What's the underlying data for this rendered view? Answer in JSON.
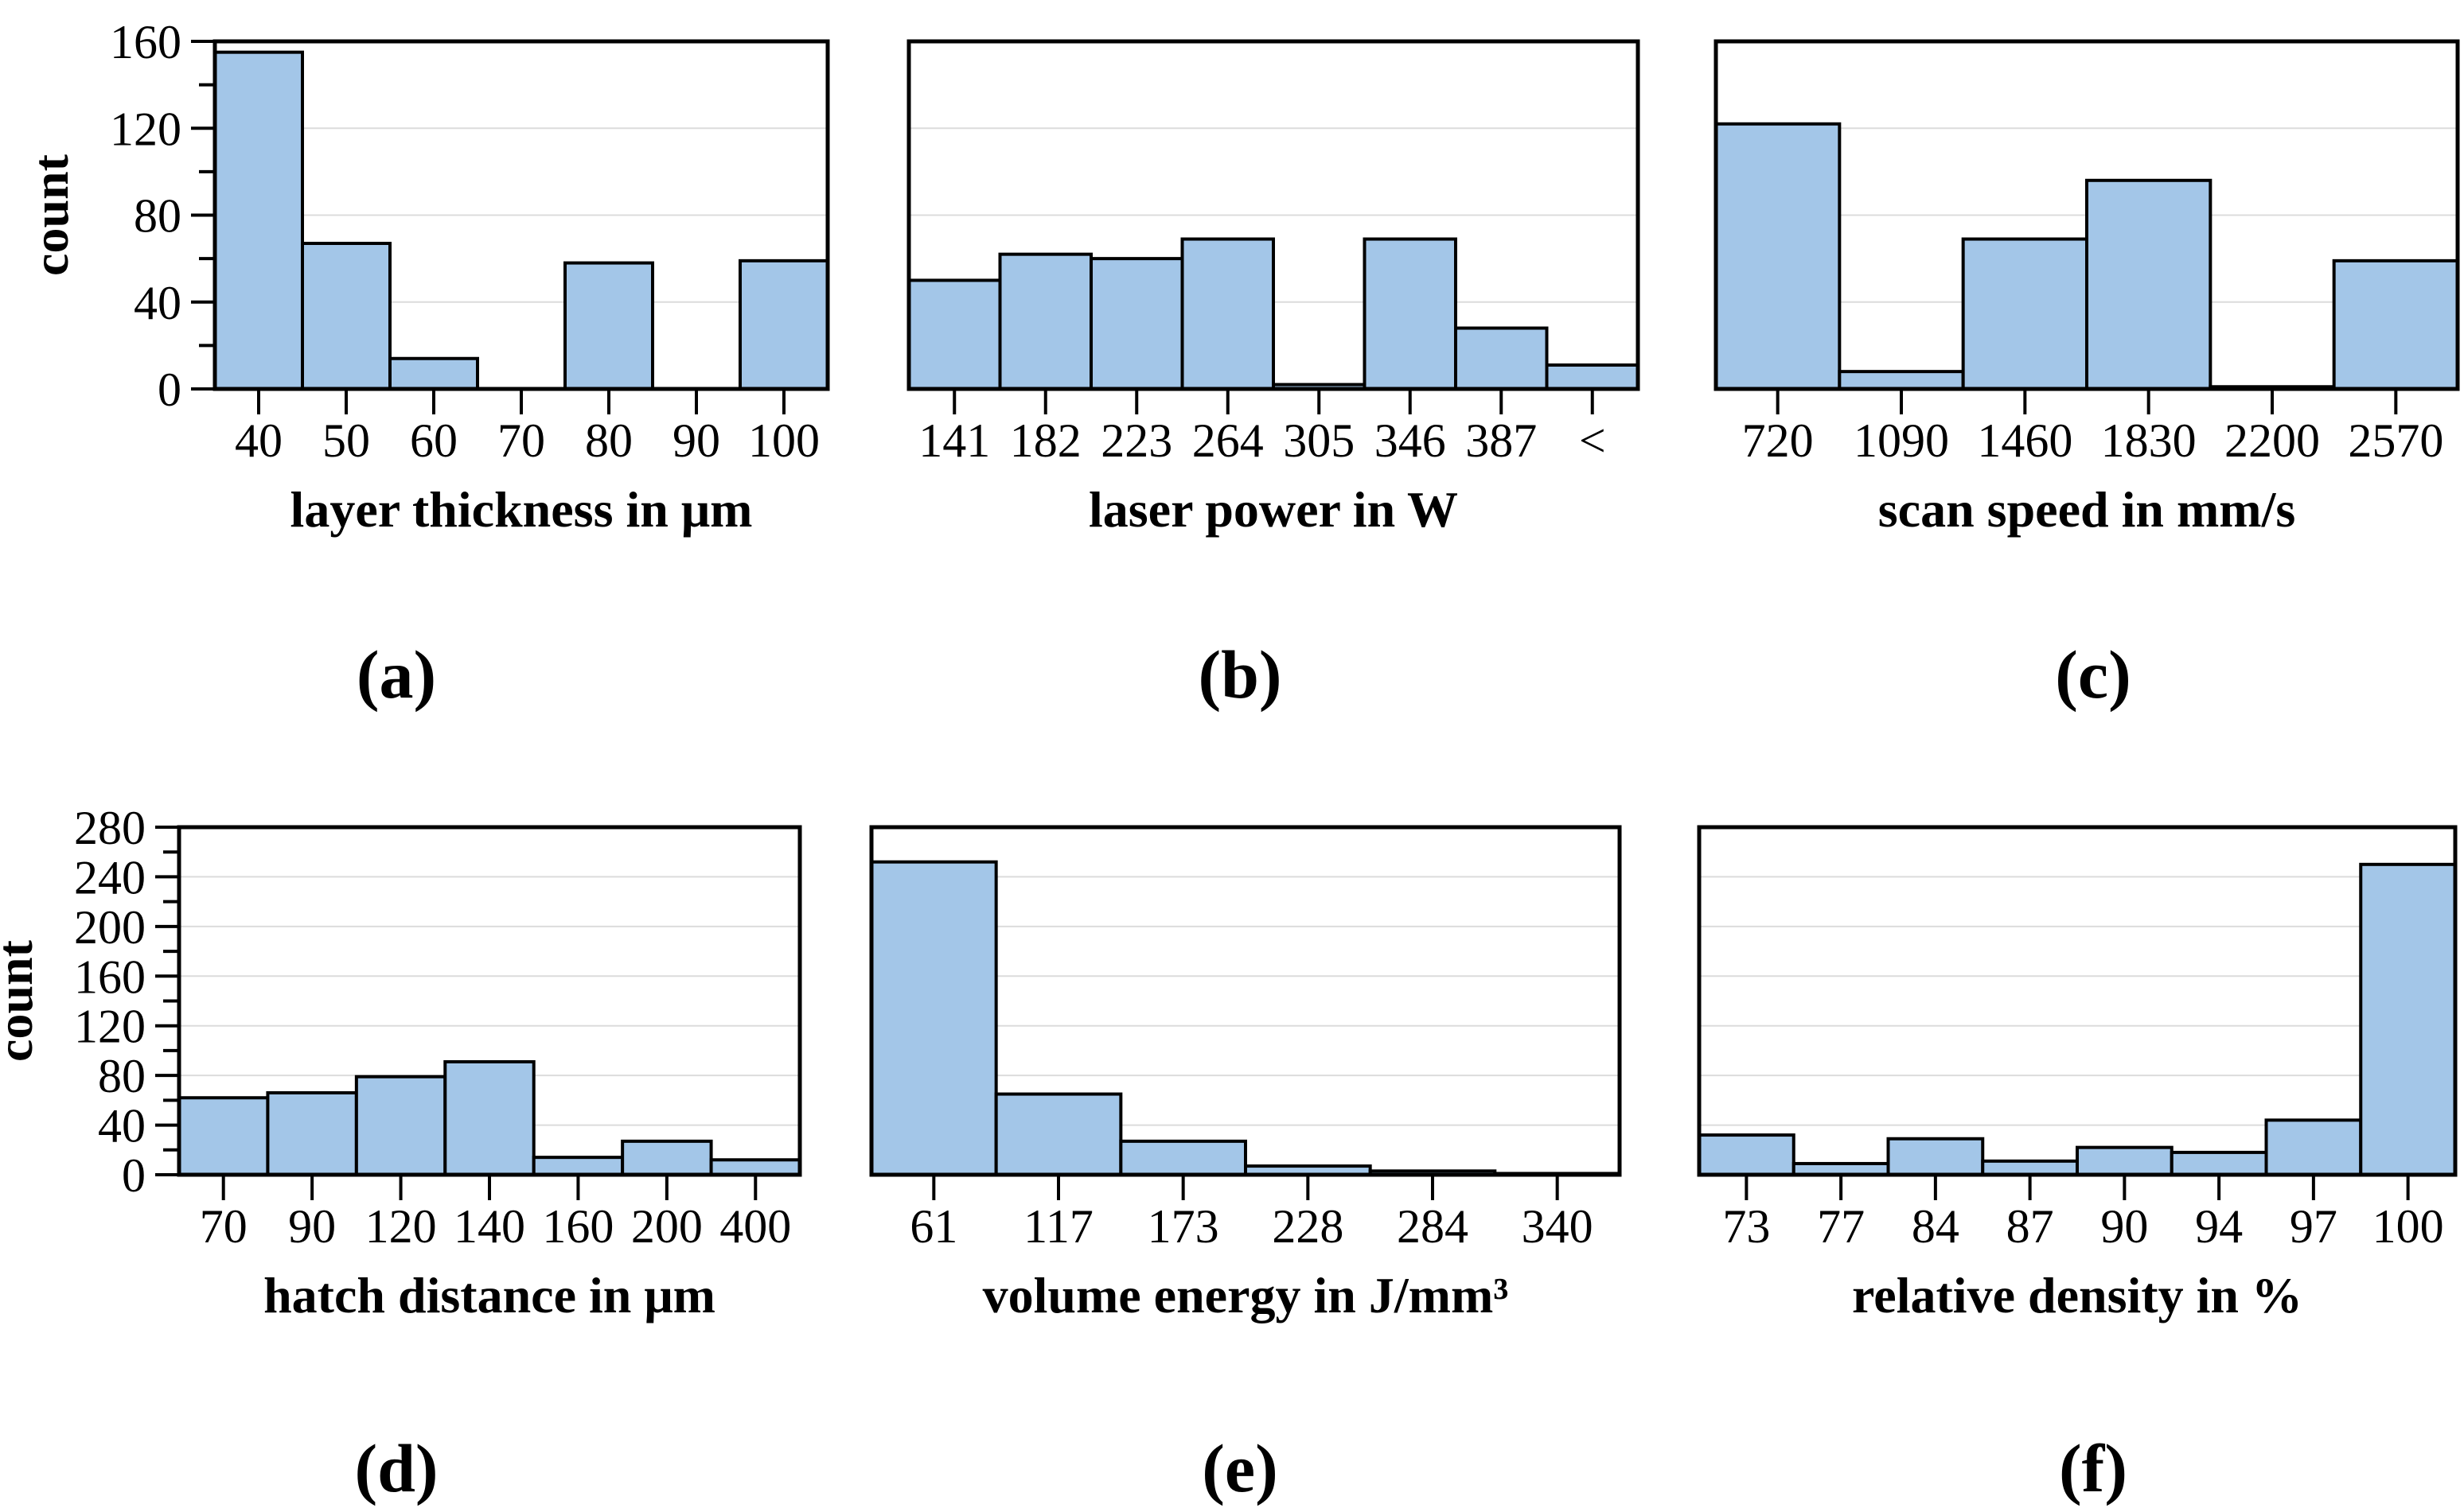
{
  "figure": {
    "background": "#ffffff"
  },
  "style": {
    "bar_fill": "#a3c6e8",
    "bar_stroke": "#000000",
    "grid_color": "#dcdcdc",
    "axis_color": "#000000",
    "text_color": "#000000"
  },
  "chart_data": [
    {
      "type": "bar",
      "caption": "(a)",
      "xlabel": "layer thickness in μm",
      "ylabel": "count",
      "categories": [
        "40",
        "50",
        "60",
        "70",
        "80",
        "90",
        "100"
      ],
      "values": [
        155,
        67,
        14,
        0,
        58,
        0,
        59
      ],
      "ylim": [
        0,
        160
      ],
      "ytick_step": 40,
      "yminor_step": 20,
      "grid": true,
      "y_axis_labels": true,
      "legend": "none"
    },
    {
      "type": "bar",
      "caption": "(b)",
      "xlabel": "laser power in W",
      "ylabel": "",
      "categories": [
        "141",
        "182",
        "223",
        "264",
        "305",
        "346",
        "387",
        "<"
      ],
      "values": [
        50,
        62,
        60,
        69,
        2,
        69,
        28,
        11
      ],
      "ylim": [
        0,
        160
      ],
      "ytick_step": 40,
      "yminor_step": 20,
      "grid": true,
      "y_axis_labels": false,
      "legend": "none"
    },
    {
      "type": "bar",
      "caption": "(c)",
      "xlabel": "scan speed in mm/s",
      "ylabel": "",
      "categories": [
        "720",
        "1090",
        "1460",
        "1830",
        "2200",
        "2570"
      ],
      "values": [
        122,
        8,
        69,
        96,
        1,
        59
      ],
      "ylim": [
        0,
        160
      ],
      "ytick_step": 40,
      "yminor_step": 20,
      "grid": true,
      "y_axis_labels": false,
      "legend": "none"
    },
    {
      "type": "bar",
      "caption": "(d)",
      "xlabel": "hatch distance in μm",
      "ylabel": "count",
      "categories": [
        "70",
        "90",
        "120",
        "140",
        "160",
        "200",
        "400"
      ],
      "values": [
        62,
        66,
        79,
        91,
        14,
        27,
        12
      ],
      "ylim": [
        0,
        280
      ],
      "ytick_step": 40,
      "yminor_step": 20,
      "grid": true,
      "y_axis_labels": true,
      "legend": "none"
    },
    {
      "type": "bar",
      "caption": "(e)",
      "xlabel": "volume energy in J/mm³",
      "ylabel": "",
      "categories": [
        "61",
        "117",
        "173",
        "228",
        "284",
        "340"
      ],
      "values": [
        252,
        65,
        27,
        7,
        3,
        1
      ],
      "ylim": [
        0,
        280
      ],
      "ytick_step": 40,
      "yminor_step": 20,
      "grid": true,
      "y_axis_labels": false,
      "legend": "none"
    },
    {
      "type": "bar",
      "caption": "(f)",
      "xlabel": "relative density in %",
      "ylabel": "",
      "categories": [
        "73",
        "77",
        "84",
        "87",
        "90",
        "94",
        "97",
        "100"
      ],
      "values": [
        32,
        9,
        29,
        11,
        22,
        18,
        44,
        250
      ],
      "ylim": [
        0,
        280
      ],
      "ytick_step": 40,
      "yminor_step": 20,
      "grid": true,
      "y_axis_labels": false,
      "legend": "none"
    }
  ]
}
